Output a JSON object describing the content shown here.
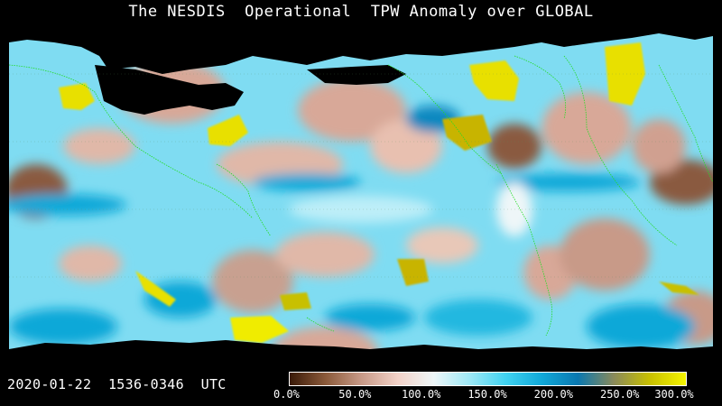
{
  "title": "The NESDIS  Operational  TPW Anomaly over GLOBAL",
  "timestamp": "2020-01-22  1536-0346  UTC",
  "colorbar": {
    "ticks": [
      "0.0%",
      "50.0%",
      "100.0%",
      "150.0%",
      "200.0%",
      "250.0%",
      "300.0%"
    ],
    "stops": [
      "#3a1a08",
      "#8b5a3a",
      "#c89a88",
      "#f2d2c8",
      "#eef6f8",
      "#9ee8f6",
      "#40d2f0",
      "#10a8d8",
      "#0a78b0",
      "#8a8a5a",
      "#c8c000",
      "#f4f400"
    ]
  },
  "colors": {
    "background": "#000000",
    "coastline": "#22dd22",
    "dry_anomaly": "#c69888",
    "moist_anomaly": "#36c8ec",
    "very_moist_anomaly": "#e8e000"
  }
}
